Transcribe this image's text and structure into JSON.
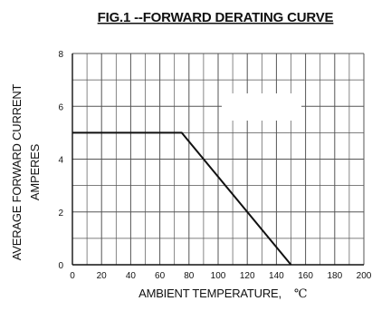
{
  "chart_data": {
    "type": "line",
    "title": "FIG.1 --FORWARD DERATING CURVE",
    "xlabel": "AMBIENT TEMPERATURE,",
    "xunit": "℃",
    "ylabel_line1": "AVERAGE FORWARD CURRENT",
    "ylabel_line2": "AMPERES",
    "xlim": [
      0,
      200
    ],
    "ylim": [
      0,
      8
    ],
    "x_ticks": [
      0,
      20,
      40,
      60,
      80,
      100,
      120,
      140,
      160,
      180,
      200
    ],
    "y_ticks": [
      0,
      2,
      4,
      6,
      8
    ],
    "x_minor_step": 10,
    "y_minor_step": 1,
    "grid": true,
    "series": [
      {
        "x": [
          0,
          75,
          150
        ],
        "y": [
          5,
          5,
          0
        ]
      }
    ],
    "colors": {
      "grid": "#555555",
      "line": "#111111",
      "background": "#ffffff"
    }
  }
}
